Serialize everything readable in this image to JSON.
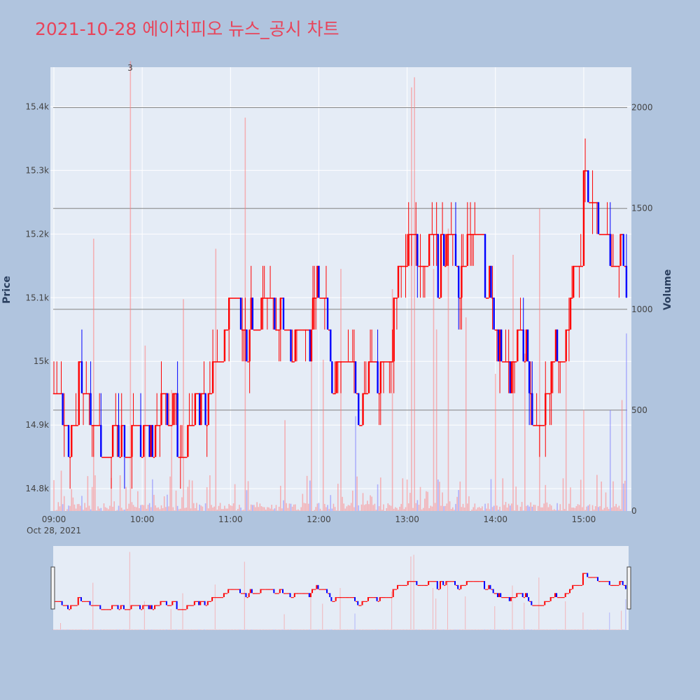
{
  "title": "2021-10-28 에이치피오 뉴스_공시 차트",
  "colors": {
    "background": "#b0c4de",
    "plot_bg": "#e5ecf6",
    "grid": "#ffffff",
    "up": "#ff0000",
    "down": "#0000ff",
    "hline": "#808080",
    "title": "#e8445a"
  },
  "chart_data": {
    "type": "candlestick_with_volume",
    "title": "2021-10-28 에이치피오 뉴스_공시 차트",
    "ylabel": "Price",
    "y2label": "Volume",
    "x_ticks": [
      "09:00",
      "10:00",
      "11:00",
      "12:00",
      "13:00",
      "14:00",
      "15:00"
    ],
    "x_date_label": "Oct 28, 2021",
    "y_ticks": [
      "14.8k",
      "14.9k",
      "15k",
      "15.1k",
      "15.2k",
      "15.3k",
      "15.4k"
    ],
    "y_tick_values": [
      14800,
      14900,
      15000,
      15100,
      15200,
      15300,
      15400
    ],
    "y2_ticks": [
      "0",
      "500",
      "1000",
      "1500",
      "2000"
    ],
    "y2_tick_values": [
      0,
      500,
      1000,
      1500,
      2000
    ],
    "ylim": [
      14765,
      15462
    ],
    "y2lim": [
      0,
      2200
    ],
    "xlim_minutes": [
      0,
      390
    ],
    "annotations": [
      {
        "text": "3"
      }
    ],
    "price_path": [
      [
        0,
        14950
      ],
      [
        3,
        14950
      ],
      [
        8,
        14900
      ],
      [
        12,
        14850
      ],
      [
        18,
        14950
      ],
      [
        22,
        14950
      ],
      [
        27,
        14900
      ],
      [
        32,
        14900
      ],
      [
        38,
        14850
      ],
      [
        45,
        14850
      ],
      [
        52,
        14880
      ],
      [
        60,
        14900
      ],
      [
        64,
        14900
      ],
      [
        70,
        14900
      ],
      [
        75,
        14940
      ],
      [
        80,
        14950
      ],
      [
        84,
        14900
      ],
      [
        88,
        14850
      ],
      [
        95,
        14900
      ],
      [
        100,
        14900
      ],
      [
        104,
        14920
      ],
      [
        108,
        14950
      ],
      [
        112,
        15000
      ],
      [
        116,
        15050
      ],
      [
        120,
        15100
      ],
      [
        125,
        15080
      ],
      [
        132,
        15050
      ],
      [
        138,
        15100
      ],
      [
        145,
        15100
      ],
      [
        152,
        15080
      ],
      [
        158,
        15050
      ],
      [
        162,
        15000
      ],
      [
        168,
        15050
      ],
      [
        172,
        15020
      ],
      [
        176,
        15050
      ],
      [
        180,
        15100
      ],
      [
        184,
        15080
      ],
      [
        188,
        15050
      ],
      [
        190,
        14950
      ],
      [
        193,
        15000
      ],
      [
        196,
        15050
      ],
      [
        200,
        15000
      ],
      [
        204,
        15000
      ],
      [
        208,
        14900
      ],
      [
        212,
        14950
      ],
      [
        218,
        15000
      ],
      [
        222,
        15000
      ],
      [
        226,
        15000
      ],
      [
        230,
        15050
      ],
      [
        234,
        15100
      ],
      [
        238,
        15150
      ],
      [
        242,
        15200
      ],
      [
        248,
        15180
      ],
      [
        252,
        15150
      ],
      [
        258,
        15200
      ],
      [
        262,
        15150
      ],
      [
        268,
        15200
      ],
      [
        272,
        15200
      ],
      [
        276,
        15150
      ],
      [
        282,
        15200
      ],
      [
        288,
        15200
      ],
      [
        294,
        15150
      ],
      [
        298,
        15100
      ],
      [
        302,
        15050
      ],
      [
        306,
        15000
      ],
      [
        310,
        14950
      ],
      [
        314,
        15000
      ],
      [
        318,
        15050
      ],
      [
        322,
        15000
      ],
      [
        326,
        14900
      ],
      [
        330,
        14950
      ],
      [
        334,
        14950
      ],
      [
        338,
        14950
      ],
      [
        342,
        15000
      ],
      [
        346,
        15000
      ],
      [
        350,
        15050
      ],
      [
        354,
        15100
      ],
      [
        356,
        15150
      ],
      [
        358,
        15200
      ],
      [
        360,
        15300
      ],
      [
        362,
        15300
      ],
      [
        364,
        15250
      ],
      [
        368,
        15250
      ],
      [
        372,
        15200
      ],
      [
        376,
        15200
      ],
      [
        380,
        15150
      ],
      [
        384,
        15200
      ],
      [
        388,
        15150
      ],
      [
        390,
        15100
      ]
    ],
    "volume_spikes": [
      [
        5,
        200
      ],
      [
        27,
        1350
      ],
      [
        52,
        2230
      ],
      [
        62,
        820
      ],
      [
        80,
        600
      ],
      [
        88,
        1050
      ],
      [
        110,
        1300
      ],
      [
        130,
        1950
      ],
      [
        157,
        450
      ],
      [
        175,
        1000
      ],
      [
        183,
        750
      ],
      [
        195,
        1200
      ],
      [
        205,
        470
      ],
      [
        230,
        1100
      ],
      [
        243,
        2100
      ],
      [
        245,
        2150
      ],
      [
        258,
        1200
      ],
      [
        260,
        900
      ],
      [
        268,
        1400
      ],
      [
        280,
        960
      ],
      [
        300,
        680
      ],
      [
        312,
        1270
      ],
      [
        320,
        780
      ],
      [
        330,
        1500
      ],
      [
        348,
        820
      ],
      [
        360,
        500
      ],
      [
        378,
        500
      ],
      [
        386,
        550
      ],
      [
        389,
        880
      ]
    ]
  }
}
